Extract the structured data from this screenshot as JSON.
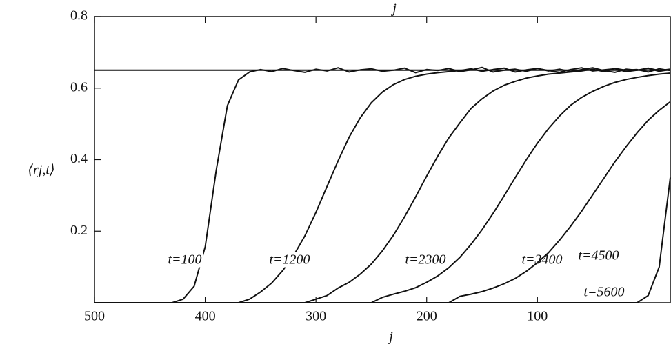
{
  "chart_data": {
    "type": "line",
    "xlabel": "j",
    "ylabel": "⟨rj,t⟩",
    "x": [
      500,
      490,
      480,
      470,
      460,
      450,
      440,
      430,
      420,
      410,
      400,
      390,
      380,
      370,
      360,
      350,
      340,
      330,
      320,
      310,
      300,
      290,
      280,
      270,
      260,
      250,
      240,
      230,
      220,
      210,
      200,
      190,
      180,
      170,
      160,
      150,
      140,
      130,
      120,
      110,
      100,
      90,
      80,
      70,
      60,
      50,
      40,
      30,
      20,
      10,
      0,
      -10,
      -20
    ],
    "xlim": [
      500,
      -20
    ],
    "ylim": [
      0,
      0.8
    ],
    "xticks": [
      500,
      400,
      300,
      200,
      100
    ],
    "yticks": [
      0.2,
      0.4,
      0.6,
      0.8
    ],
    "series": [
      {
        "color": "#111111",
        "values": [
          0.65,
          0.65,
          0.65,
          0.65,
          0.65,
          0.65,
          0.65,
          0.65,
          0.65,
          0.65,
          0.65,
          0.65,
          0.65,
          0.65,
          0.65,
          0.65,
          0.65,
          0.65,
          0.65,
          0.65,
          0.65,
          0.65,
          0.65,
          0.65,
          0.65,
          0.65,
          0.65,
          0.65,
          0.65,
          0.65,
          0.65,
          0.65,
          0.65,
          0.65,
          0.65,
          0.65,
          0.65,
          0.65,
          0.65,
          0.65,
          0.65,
          0.65,
          0.65,
          0.65,
          0.65,
          0.65,
          0.65,
          0.65,
          0.65,
          0.65,
          0.65,
          0.65,
          0.65
        ]
      },
      {
        "name": "t=100",
        "color": "#111111",
        "values": [
          0,
          0,
          0,
          0,
          0,
          0,
          0,
          0,
          0.01,
          0.046,
          0.157,
          0.371,
          0.551,
          0.623,
          0.645,
          0.652,
          0.646,
          0.655,
          0.649,
          0.644,
          0.653,
          0.648,
          0.657,
          0.645,
          0.651,
          0.654,
          0.647,
          0.65,
          0.656,
          0.643,
          0.652,
          0.649,
          0.655,
          0.646,
          0.651,
          0.658,
          0.645,
          0.65,
          0.653,
          0.647,
          0.655,
          0.649,
          0.644,
          0.652,
          0.657,
          0.648,
          0.651,
          0.654,
          0.646,
          0.65,
          0.656,
          0.649,
          0.653
        ]
      },
      {
        "name": "t=1200",
        "color": "#111111",
        "values": [
          0,
          0,
          0,
          0,
          0,
          0,
          0,
          0,
          0,
          0,
          0,
          0,
          0,
          0,
          0.01,
          0.03,
          0.055,
          0.09,
          0.133,
          0.187,
          0.253,
          0.325,
          0.397,
          0.463,
          0.517,
          0.559,
          0.589,
          0.61,
          0.624,
          0.633,
          0.639,
          0.643,
          0.646,
          0.649,
          0.654,
          0.647,
          0.652,
          0.656,
          0.645,
          0.651,
          0.655,
          0.648,
          0.653,
          0.646,
          0.652,
          0.657,
          0.649,
          0.644,
          0.653,
          0.65,
          0.655,
          0.647,
          0.652
        ]
      },
      {
        "name": "t=2300",
        "color": "#111111",
        "values": [
          0,
          0,
          0,
          0,
          0,
          0,
          0,
          0,
          0,
          0,
          0,
          0,
          0,
          0,
          0,
          0,
          0,
          0,
          0,
          0,
          0.01,
          0.02,
          0.041,
          0.057,
          0.08,
          0.108,
          0.145,
          0.189,
          0.24,
          0.296,
          0.354,
          0.41,
          0.461,
          0.503,
          0.543,
          0.57,
          0.592,
          0.608,
          0.619,
          0.628,
          0.634,
          0.639,
          0.642,
          0.645,
          0.648,
          0.653,
          0.646,
          0.655,
          0.65,
          0.652,
          0.645,
          0.654,
          0.649
        ]
      },
      {
        "name": "t=3400",
        "color": "#111111",
        "values": [
          0,
          0,
          0,
          0,
          0,
          0,
          0,
          0,
          0,
          0,
          0,
          0,
          0,
          0,
          0,
          0,
          0,
          0,
          0,
          0,
          0,
          0,
          0,
          0,
          0,
          0,
          0.015,
          0.024,
          0.032,
          0.042,
          0.057,
          0.075,
          0.098,
          0.127,
          0.163,
          0.204,
          0.25,
          0.299,
          0.35,
          0.4,
          0.446,
          0.487,
          0.522,
          0.552,
          0.574,
          0.591,
          0.605,
          0.616,
          0.624,
          0.63,
          0.635,
          0.639,
          0.642
        ]
      },
      {
        "name": "t=4500",
        "color": "#111111",
        "values": [
          0,
          0,
          0,
          0,
          0,
          0,
          0,
          0,
          0,
          0,
          0,
          0,
          0,
          0,
          0,
          0,
          0,
          0,
          0,
          0,
          0,
          0,
          0,
          0,
          0,
          0,
          0,
          0,
          0,
          0,
          0,
          0,
          0,
          0.018,
          0.024,
          0.031,
          0.041,
          0.053,
          0.068,
          0.088,
          0.112,
          0.14,
          0.175,
          0.214,
          0.256,
          0.302,
          0.348,
          0.394,
          0.436,
          0.475,
          0.51,
          0.538,
          0.562
        ]
      },
      {
        "name": "t=5600",
        "color": "#111111",
        "values": [
          0,
          0,
          0,
          0,
          0,
          0,
          0,
          0,
          0,
          0,
          0,
          0,
          0,
          0,
          0,
          0,
          0,
          0,
          0,
          0,
          0,
          0,
          0,
          0,
          0,
          0,
          0,
          0,
          0,
          0,
          0,
          0,
          0,
          0,
          0,
          0,
          0,
          0,
          0,
          0,
          0,
          0,
          0,
          0,
          0,
          0,
          0,
          0,
          0,
          0,
          0.02,
          0.1,
          0.35
        ]
      }
    ]
  }
}
